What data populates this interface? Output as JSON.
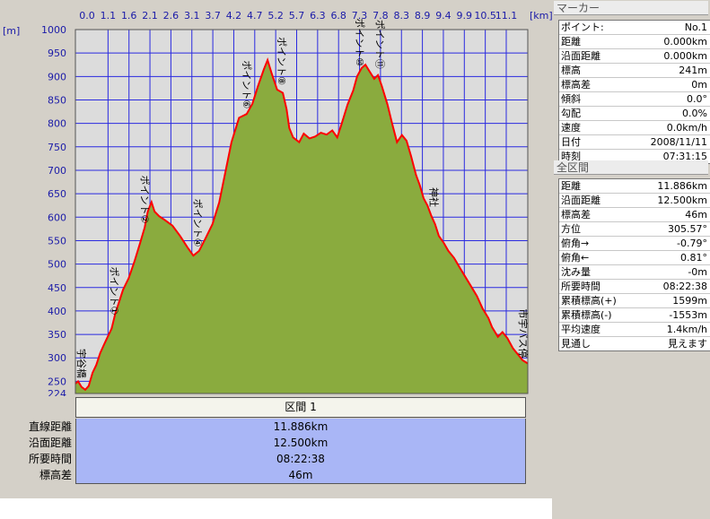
{
  "chart_data": {
    "type": "area",
    "xlabel": "[km]",
    "ylabel": "[m]",
    "xlim": [
      0,
      11.886
    ],
    "ylim": [
      224,
      1000
    ],
    "x_ticks": [
      "0.0",
      "1.1",
      "1.6",
      "2.1",
      "2.6",
      "3.1",
      "3.7",
      "4.2",
      "4.7",
      "5.2",
      "5.7",
      "6.3",
      "6.8",
      "7.3",
      "7.8",
      "8.3",
      "8.9",
      "9.4",
      "9.9",
      "10.5",
      "11.1"
    ],
    "y_ticks": [
      1000,
      950,
      900,
      850,
      800,
      750,
      700,
      650,
      600,
      550,
      500,
      450,
      400,
      350,
      300,
      250,
      224
    ],
    "grid": true,
    "fill_color": "#8aab3e",
    "line_color": "#ff0000",
    "background_color": "#dcdcdc",
    "grid_color": "#2a2ae0",
    "points": [
      [
        0.0,
        245
      ],
      [
        0.07,
        250
      ],
      [
        0.16,
        238
      ],
      [
        0.26,
        232
      ],
      [
        0.35,
        240
      ],
      [
        0.45,
        268
      ],
      [
        0.55,
        285
      ],
      [
        0.65,
        310
      ],
      [
        0.75,
        328
      ],
      [
        0.85,
        345
      ],
      [
        0.95,
        362
      ],
      [
        1.05,
        395
      ],
      [
        1.15,
        420
      ],
      [
        1.25,
        445
      ],
      [
        1.4,
        470
      ],
      [
        1.55,
        505
      ],
      [
        1.7,
        545
      ],
      [
        1.82,
        578
      ],
      [
        1.9,
        612
      ],
      [
        2.0,
        632
      ],
      [
        2.08,
        612
      ],
      [
        2.2,
        602
      ],
      [
        2.35,
        594
      ],
      [
        2.55,
        582
      ],
      [
        2.75,
        560
      ],
      [
        2.95,
        535
      ],
      [
        3.1,
        518
      ],
      [
        3.25,
        528
      ],
      [
        3.4,
        552
      ],
      [
        3.6,
        585
      ],
      [
        3.78,
        632
      ],
      [
        3.95,
        700
      ],
      [
        4.1,
        760
      ],
      [
        4.3,
        812
      ],
      [
        4.5,
        820
      ],
      [
        4.65,
        842
      ],
      [
        4.8,
        880
      ],
      [
        4.95,
        915
      ],
      [
        5.05,
        935
      ],
      [
        5.15,
        908
      ],
      [
        5.3,
        872
      ],
      [
        5.45,
        865
      ],
      [
        5.55,
        830
      ],
      [
        5.62,
        790
      ],
      [
        5.72,
        770
      ],
      [
        5.88,
        760
      ],
      [
        6.0,
        778
      ],
      [
        6.15,
        768
      ],
      [
        6.3,
        772
      ],
      [
        6.45,
        780
      ],
      [
        6.6,
        776
      ],
      [
        6.75,
        785
      ],
      [
        6.88,
        770
      ],
      [
        7.0,
        800
      ],
      [
        7.15,
        840
      ],
      [
        7.3,
        870
      ],
      [
        7.4,
        900
      ],
      [
        7.52,
        918
      ],
      [
        7.62,
        925
      ],
      [
        7.72,
        912
      ],
      [
        7.85,
        895
      ],
      [
        7.95,
        903
      ],
      [
        8.05,
        880
      ],
      [
        8.2,
        840
      ],
      [
        8.32,
        800
      ],
      [
        8.45,
        760
      ],
      [
        8.58,
        775
      ],
      [
        8.7,
        763
      ],
      [
        8.82,
        730
      ],
      [
        8.95,
        690
      ],
      [
        9.05,
        668
      ],
      [
        9.15,
        640
      ],
      [
        9.25,
        625
      ],
      [
        9.35,
        603
      ],
      [
        9.45,
        585
      ],
      [
        9.55,
        560
      ],
      [
        9.68,
        545
      ],
      [
        9.8,
        528
      ],
      [
        9.95,
        513
      ],
      [
        10.1,
        492
      ],
      [
        10.25,
        472
      ],
      [
        10.4,
        452
      ],
      [
        10.55,
        432
      ],
      [
        10.7,
        405
      ],
      [
        10.85,
        385
      ],
      [
        10.95,
        365
      ],
      [
        11.1,
        345
      ],
      [
        11.22,
        355
      ],
      [
        11.35,
        342
      ],
      [
        11.5,
        320
      ],
      [
        11.65,
        305
      ],
      [
        11.75,
        295
      ],
      [
        11.886,
        288
      ]
    ],
    "annotations": [
      {
        "text": "宇谷橋",
        "x": 0.0,
        "elev": 245
      },
      {
        "text": "ポイント①",
        "x": 1.0,
        "elev": 380
      },
      {
        "text": "ポイント②",
        "x": 1.8,
        "elev": 575
      },
      {
        "text": "ポイント④",
        "x": 3.2,
        "elev": 525
      },
      {
        "text": "ポイント⑥",
        "x": 4.48,
        "elev": 820
      },
      {
        "text": "ポイント⑧",
        "x": 5.4,
        "elev": 870
      },
      {
        "text": "ポイント⑩",
        "x": 7.45,
        "elev": 910
      },
      {
        "text": "ポイント⑪",
        "x": 7.98,
        "elev": 905
      },
      {
        "text": "神社",
        "x": 9.4,
        "elev": 610
      },
      {
        "text": "市宇バス停",
        "x": 11.886,
        "elev": 288
      }
    ]
  },
  "summary": {
    "header": "区間 1",
    "rows": [
      {
        "label": "直線距離",
        "value": "11.886km"
      },
      {
        "label": "沿面距離",
        "value": "12.500km"
      },
      {
        "label": "所要時間",
        "value": "08:22:38"
      },
      {
        "label": "標高差",
        "value": "46m"
      }
    ]
  },
  "marker_panel": {
    "title": "マーカー",
    "rows": [
      {
        "label": "ポイント:",
        "value": "No.1"
      },
      {
        "label": "距離",
        "value": "0.000km"
      },
      {
        "label": "沿面距離",
        "value": "0.000km"
      },
      {
        "label": "標高",
        "value": "241m"
      },
      {
        "label": "標高差",
        "value": "0m"
      },
      {
        "label": "傾斜",
        "value": "0.0°"
      },
      {
        "label": "勾配",
        "value": "0.0%"
      },
      {
        "label": "速度",
        "value": "0.0km/h"
      },
      {
        "label": "日付",
        "value": "2008/11/11"
      },
      {
        "label": "時刻",
        "value": "07:31:15"
      }
    ]
  },
  "section_panel": {
    "title": "全区間",
    "rows": [
      {
        "label": "距離",
        "value": "11.886km"
      },
      {
        "label": "沿面距離",
        "value": "12.500km"
      },
      {
        "label": "標高差",
        "value": "46m"
      },
      {
        "label": "方位",
        "value": "305.57°"
      },
      {
        "label": "俯角→",
        "value": "-0.79°"
      },
      {
        "label": "俯角←",
        "value": "0.81°"
      },
      {
        "label": "沈み量",
        "value": "-0m"
      },
      {
        "label": "所要時間",
        "value": "08:22:38"
      },
      {
        "label": "累積標高(+)",
        "value": "1599m"
      },
      {
        "label": "累積標高(-)",
        "value": "-1553m"
      },
      {
        "label": "平均速度",
        "value": "1.4km/h"
      },
      {
        "label": "見通し",
        "value": "見えます"
      }
    ]
  }
}
